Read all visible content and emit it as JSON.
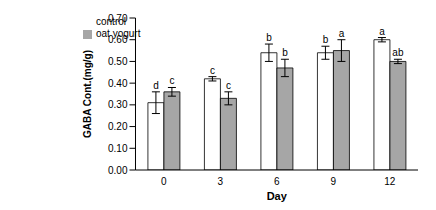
{
  "chart_data": {
    "type": "bar",
    "x_label": "Day",
    "y_label": "GABA Cont.(mg/g)",
    "categories": [
      "0",
      "3",
      "6",
      "9",
      "12"
    ],
    "series": [
      {
        "name": "control",
        "color": "#ffffff",
        "values": [
          0.31,
          0.42,
          0.54,
          0.54,
          0.6
        ],
        "errors": [
          0.05,
          0.01,
          0.04,
          0.03,
          0.01
        ],
        "letters": [
          "d",
          "c",
          "b",
          "b",
          "a"
        ]
      },
      {
        "name": "oat yogurt",
        "color": "#a6a6a6",
        "values": [
          0.36,
          0.33,
          0.47,
          0.55,
          0.5
        ],
        "errors": [
          0.02,
          0.03,
          0.04,
          0.05,
          0.01
        ],
        "letters": [
          "c",
          "c",
          "b",
          "a",
          "ab"
        ]
      }
    ],
    "ylim": [
      0,
      0.7
    ],
    "yticks": [
      {
        "value": 0,
        "label": "0.00"
      },
      {
        "value": 0.1,
        "label": "0.10"
      },
      {
        "value": 0.2,
        "label": "0.20"
      },
      {
        "value": 0.3,
        "label": "0.30"
      },
      {
        "value": 0.4,
        "label": "0.40"
      },
      {
        "value": 0.5,
        "label": "0.50"
      },
      {
        "value": 0.6,
        "label": "0.60"
      },
      {
        "value": 0.7,
        "label": "0.70"
      }
    ],
    "grid": false,
    "legend": "upper left"
  }
}
